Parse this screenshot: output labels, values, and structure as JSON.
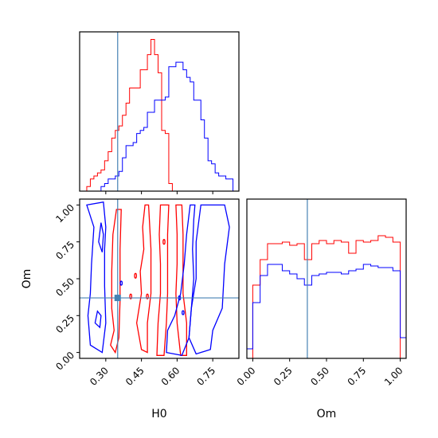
{
  "chart_data": {
    "type": "corner",
    "parameters": [
      "H0",
      "Om"
    ],
    "truth": {
      "H0": 0.35,
      "Om": 0.37
    },
    "colors": {
      "run_a": "#ff0000",
      "run_b": "#0000ff",
      "truth": "#4682b4"
    },
    "axes": {
      "H0": {
        "range": [
          0.19,
          0.86
        ],
        "ticks": [
          0.3,
          0.45,
          0.6,
          0.75
        ],
        "tick_labels": [
          "0.30",
          "0.45",
          "0.60",
          "0.75"
        ],
        "xlabel": "H0"
      },
      "Om": {
        "range": [
          -0.04,
          1.04
        ],
        "ticks": [
          0.0,
          0.25,
          0.5,
          0.75,
          1.0
        ],
        "tick_labels": [
          "0.00",
          "0.25",
          "0.50",
          "0.75",
          "1.00"
        ],
        "xlabel": "Om",
        "ylabel": "Om"
      }
    },
    "hist_H0": {
      "edges": [
        0.19,
        0.205,
        0.22,
        0.235,
        0.25,
        0.265,
        0.28,
        0.295,
        0.31,
        0.325,
        0.34,
        0.355,
        0.37,
        0.385,
        0.4,
        0.415,
        0.43,
        0.445,
        0.46,
        0.475,
        0.49,
        0.505,
        0.52,
        0.535,
        0.55,
        0.565,
        0.58,
        0.595,
        0.61,
        0.625,
        0.64,
        0.655,
        0.67,
        0.685,
        0.7,
        0.715,
        0.73,
        0.745,
        0.76,
        0.775,
        0.79,
        0.805,
        0.82,
        0.835,
        0.86
      ],
      "run_a": [
        0,
        0,
        0.03,
        0.08,
        0.1,
        0.12,
        0.14,
        0.2,
        0.26,
        0.35,
        0.4,
        0.43,
        0.5,
        0.58,
        0.68,
        0.68,
        0.68,
        0.8,
        0.8,
        0.9,
        1.0,
        0.9,
        0.78,
        0.4,
        0.38,
        0.05,
        0,
        0,
        0,
        0,
        0,
        0,
        0,
        0,
        0,
        0,
        0,
        0,
        0,
        0,
        0,
        0,
        0,
        0
      ],
      "run_b": [
        0,
        0,
        0,
        0,
        0,
        0,
        0.03,
        0.05,
        0.08,
        0.08,
        0.1,
        0.13,
        0.22,
        0.3,
        0.3,
        0.32,
        0.38,
        0.4,
        0.42,
        0.52,
        0.52,
        0.6,
        0.6,
        0.6,
        0.62,
        0.82,
        0.82,
        0.85,
        0.85,
        0.8,
        0.75,
        0.72,
        0.6,
        0.6,
        0.47,
        0.35,
        0.2,
        0.18,
        0.12,
        0.1,
        0.1,
        0.08,
        0.08,
        0
      ]
    },
    "hist_Om": {
      "edges": [
        -0.04,
        0.0,
        0.05,
        0.1,
        0.15,
        0.2,
        0.25,
        0.3,
        0.35,
        0.4,
        0.45,
        0.5,
        0.55,
        0.6,
        0.65,
        0.7,
        0.75,
        0.8,
        0.85,
        0.9,
        0.95,
        1.0,
        1.04
      ],
      "run_a": [
        0,
        0.46,
        0.62,
        0.72,
        0.72,
        0.73,
        0.71,
        0.72,
        0.62,
        0.72,
        0.74,
        0.72,
        0.74,
        0.73,
        0.66,
        0.74,
        0.73,
        0.74,
        0.77,
        0.76,
        0.73,
        0
      ],
      "run_b": [
        0.06,
        0.35,
        0.52,
        0.59,
        0.59,
        0.55,
        0.53,
        0.5,
        0.46,
        0.52,
        0.53,
        0.54,
        0.54,
        0.53,
        0.55,
        0.56,
        0.59,
        0.58,
        0.57,
        0.57,
        0.55,
        0.13
      ]
    },
    "contours": {
      "run_a": [
        [
          [
            0.345,
            0.97
          ],
          [
            0.33,
            0.8
          ],
          [
            0.325,
            0.55
          ],
          [
            0.325,
            0.3
          ],
          [
            0.335,
            0.15
          ],
          [
            0.32,
            0.05
          ],
          [
            0.34,
            0.0
          ],
          [
            0.355,
            0.1
          ],
          [
            0.36,
            0.35
          ],
          [
            0.36,
            0.7
          ],
          [
            0.365,
            0.97
          ],
          [
            0.345,
            0.97
          ]
        ],
        [
          [
            0.465,
            1.0
          ],
          [
            0.455,
            0.85
          ],
          [
            0.46,
            0.7
          ],
          [
            0.445,
            0.55
          ],
          [
            0.45,
            0.4
          ],
          [
            0.43,
            0.2
          ],
          [
            0.45,
            0.02
          ],
          [
            0.475,
            0.0
          ],
          [
            0.475,
            0.2
          ],
          [
            0.49,
            0.4
          ],
          [
            0.49,
            0.7
          ],
          [
            0.485,
            0.85
          ],
          [
            0.48,
            1.0
          ],
          [
            0.465,
            1.0
          ]
        ],
        [
          [
            0.53,
            1.0
          ],
          [
            0.525,
            0.8
          ],
          [
            0.53,
            0.6
          ],
          [
            0.53,
            0.4
          ],
          [
            0.52,
            0.2
          ],
          [
            0.515,
            -0.02
          ],
          [
            0.545,
            -0.02
          ],
          [
            0.555,
            0.2
          ],
          [
            0.56,
            0.4
          ],
          [
            0.56,
            0.6
          ],
          [
            0.56,
            0.8
          ],
          [
            0.565,
            1.0
          ],
          [
            0.53,
            1.0
          ]
        ],
        [
          [
            0.595,
            1.0
          ],
          [
            0.6,
            0.8
          ],
          [
            0.6,
            0.6
          ],
          [
            0.595,
            0.4
          ],
          [
            0.6,
            0.2
          ],
          [
            0.615,
            -0.02
          ],
          [
            0.64,
            -0.02
          ],
          [
            0.64,
            0.2
          ],
          [
            0.625,
            0.4
          ],
          [
            0.625,
            0.6
          ],
          [
            0.625,
            0.8
          ],
          [
            0.62,
            1.0
          ],
          [
            0.595,
            1.0
          ]
        ]
      ],
      "run_b": [
        [
          [
            0.22,
            1.0
          ],
          [
            0.25,
            0.85
          ],
          [
            0.24,
            0.6
          ],
          [
            0.235,
            0.4
          ],
          [
            0.225,
            0.25
          ],
          [
            0.235,
            0.05
          ],
          [
            0.285,
            0.0
          ],
          [
            0.3,
            0.2
          ],
          [
            0.295,
            0.45
          ],
          [
            0.295,
            0.7
          ],
          [
            0.3,
            0.85
          ],
          [
            0.29,
            1.02
          ],
          [
            0.22,
            1.0
          ]
        ],
        [
          [
            0.28,
            0.88
          ],
          [
            0.27,
            0.75
          ],
          [
            0.285,
            0.68
          ],
          [
            0.29,
            0.8
          ],
          [
            0.28,
            0.88
          ]
        ],
        [
          [
            0.265,
            0.28
          ],
          [
            0.255,
            0.2
          ],
          [
            0.275,
            0.17
          ],
          [
            0.28,
            0.25
          ],
          [
            0.265,
            0.28
          ]
        ],
        [
          [
            0.655,
            1.0
          ],
          [
            0.64,
            0.8
          ],
          [
            0.63,
            0.6
          ],
          [
            0.615,
            0.4
          ],
          [
            0.59,
            0.25
          ],
          [
            0.56,
            0.15
          ],
          [
            0.555,
            0.0
          ],
          [
            0.62,
            -0.02
          ],
          [
            0.65,
            0.1
          ],
          [
            0.66,
            0.3
          ],
          [
            0.67,
            0.5
          ],
          [
            0.665,
            0.7
          ],
          [
            0.67,
            0.9
          ],
          [
            0.675,
            1.0
          ],
          [
            0.655,
            1.0
          ]
        ],
        [
          [
            0.7,
            1.0
          ],
          [
            0.68,
            0.75
          ],
          [
            0.68,
            0.5
          ],
          [
            0.66,
            0.3
          ],
          [
            0.65,
            0.1
          ],
          [
            0.68,
            -0.01
          ],
          [
            0.74,
            0.02
          ],
          [
            0.75,
            0.15
          ],
          [
            0.79,
            0.3
          ],
          [
            0.8,
            0.6
          ],
          [
            0.82,
            0.85
          ],
          [
            0.8,
            1.0
          ],
          [
            0.7,
            1.0
          ]
        ]
      ]
    },
    "markers": {
      "run_a": [
        [
          0.425,
          0.52
        ],
        [
          0.405,
          0.38
        ],
        [
          0.475,
          0.38
        ],
        [
          0.545,
          0.75
        ]
      ],
      "run_b": [
        [
          0.365,
          0.47
        ],
        [
          0.61,
          0.37
        ],
        [
          0.625,
          0.27
        ]
      ]
    }
  }
}
